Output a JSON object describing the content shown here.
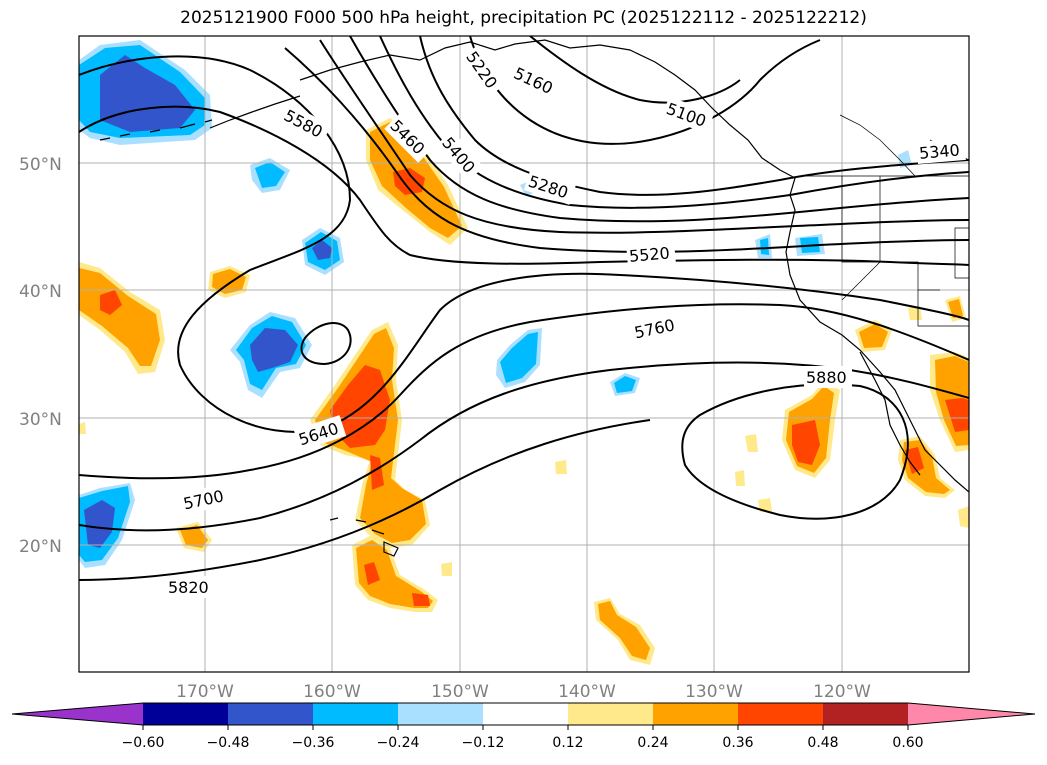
{
  "title": "2025121900 F000 500 hPa height, precipitation PC (2025122112 - 2025122212)",
  "map": {
    "lat_labels": [
      "50°N",
      "40°N",
      "30°N",
      "20°N"
    ],
    "lon_labels": [
      "170°W",
      "160°W",
      "150°W",
      "140°W",
      "130°W",
      "120°W"
    ],
    "contour_labels": [
      "5160",
      "5220",
      "5100",
      "5340",
      "5280",
      "5400",
      "5460",
      "5580",
      "5520",
      "5760",
      "5880",
      "5640",
      "5700",
      "5820"
    ]
  },
  "colorbar": {
    "ticks": [
      "−0.60",
      "−0.48",
      "−0.36",
      "−0.24",
      "−0.12",
      "0.12",
      "0.24",
      "0.36",
      "0.48",
      "0.60"
    ],
    "colors": [
      "#9933cc",
      "#000099",
      "#3355cc",
      "#00bbff",
      "#aae0ff",
      "#ffffff",
      "#ffe98a",
      "#ffa200",
      "#ff4500",
      "#b22222",
      "#ff88aa"
    ]
  }
}
